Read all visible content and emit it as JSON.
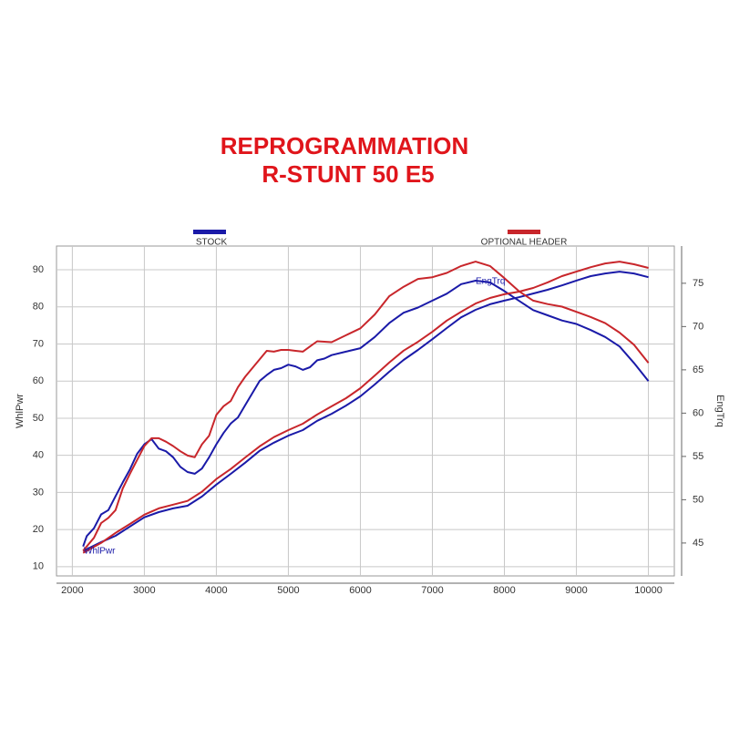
{
  "chart_data": {
    "type": "line",
    "title": [
      "REPROGRAMMATION",
      "R-STUNT 50 E5"
    ],
    "y_label": "WhlPwr",
    "y2_label": "EngTrq",
    "annotations": [
      "EngTrq",
      "WhlPwr"
    ],
    "xlim": [
      1780,
      10360
    ],
    "ylim": [
      7.5,
      96.4
    ],
    "y2lim": [
      41.2,
      79.3
    ],
    "xticks": [
      2000,
      3000,
      4000,
      5000,
      6000,
      7000,
      8000,
      9000,
      10000
    ],
    "yticks": [
      10,
      20,
      30,
      40,
      50,
      60,
      70,
      80,
      90
    ],
    "y2ticks": [
      45,
      50,
      55,
      60,
      65,
      70,
      75
    ],
    "grid": true,
    "series": [
      {
        "name": "STOCK",
        "color": "#1a1aa8",
        "lines": [
          {
            "x": [
              2150,
              2400,
              2600,
              2800,
              3000,
              3200,
              3400,
              3600,
              3800,
              4000,
              4200,
              4400,
              4600,
              4800,
              5000,
              5200,
              5400,
              5600,
              5800,
              6000,
              6200,
              6400,
              6600,
              6800,
              7000,
              7200,
              7400,
              7600,
              7800,
              8000,
              8200,
              8400,
              8600,
              8800,
              9000,
              9200,
              9400,
              9600,
              9800,
              10000
            ],
            "values": [
              14.2,
              16.6,
              18.3,
              20.8,
              23.3,
              24.7,
              25.7,
              26.4,
              28.9,
              32.1,
              35.0,
              38.0,
              41.2,
              43.4,
              45.3,
              46.8,
              49.3,
              51.2,
              53.4,
              55.9,
              59.1,
              62.5,
              65.7,
              68.4,
              71.3,
              74.3,
              77.2,
              79.2,
              80.7,
              81.7,
              82.6,
              83.6,
              84.6,
              85.8,
              87.1,
              88.3,
              89.0,
              89.5,
              89.0,
              88.0
            ]
          },
          {
            "axis": "y2",
            "x": [
              2150,
              2200,
              2300,
              2400,
              2500,
              2600,
              2700,
              2800,
              2900,
              3000,
              3100,
              3200,
              3300,
              3400,
              3500,
              3600,
              3700,
              3800,
              3900,
              4000,
              4100,
              4200,
              4300,
              4400,
              4500,
              4600,
              4700,
              4800,
              4900,
              5000,
              5100,
              5200,
              5300,
              5400,
              5500,
              5600,
              5800,
              6000,
              6200,
              6400,
              6600,
              6800,
              7000,
              7200,
              7400,
              7600,
              7800,
              8000,
              8200,
              8400,
              8600,
              8800,
              9000,
              9200,
              9400,
              9600,
              9800,
              10000
            ],
            "values": [
              44.6,
              45.8,
              46.7,
              48.3,
              48.8,
              50.4,
              52.0,
              53.5,
              55.3,
              56.4,
              57.0,
              55.9,
              55.6,
              54.9,
              53.8,
              53.2,
              53.0,
              53.6,
              54.9,
              56.4,
              57.7,
              58.8,
              59.5,
              60.9,
              62.3,
              63.7,
              64.4,
              65.0,
              65.2,
              65.6,
              65.4,
              65.0,
              65.3,
              66.1,
              66.3,
              66.7,
              67.1,
              67.5,
              68.8,
              70.4,
              71.6,
              72.2,
              73.0,
              73.8,
              74.9,
              75.3,
              75.1,
              74.1,
              73.0,
              71.9,
              71.3,
              70.7,
              70.3,
              69.6,
              68.8,
              67.7,
              65.8,
              63.7
            ]
          }
        ]
      },
      {
        "name": "OPTIONAL HEADER",
        "color": "#c8262b",
        "lines": [
          {
            "x": [
              2150,
              2400,
              2600,
              2800,
              3000,
              3200,
              3400,
              3600,
              3800,
              4000,
              4200,
              4400,
              4600,
              4800,
              5000,
              5200,
              5400,
              5600,
              5800,
              6000,
              6200,
              6400,
              6600,
              6800,
              7000,
              7200,
              7400,
              7600,
              7800,
              8000,
              8200,
              8400,
              8600,
              8800,
              9000,
              9200,
              9400,
              9600,
              9800,
              10000
            ],
            "values": [
              13.7,
              16.4,
              19.1,
              21.5,
              24.0,
              25.7,
              26.7,
              27.7,
              30.2,
              33.6,
              36.3,
              39.4,
              42.4,
              44.9,
              46.8,
              48.5,
              51.0,
              53.2,
              55.4,
              58.1,
              61.5,
              65.0,
              68.2,
              70.6,
              73.3,
              76.3,
              78.7,
              80.9,
              82.4,
              83.4,
              84.1,
              85.1,
              86.6,
              88.3,
              89.5,
              90.7,
              91.7,
              92.2,
              91.5,
              90.5
            ]
          },
          {
            "axis": "y2",
            "x": [
              2150,
              2300,
              2400,
              2500,
              2600,
              2700,
              2800,
              2900,
              3000,
              3100,
              3200,
              3300,
              3400,
              3500,
              3600,
              3700,
              3800,
              3900,
              4000,
              4100,
              4200,
              4300,
              4400,
              4500,
              4600,
              4700,
              4800,
              4900,
              5000,
              5100,
              5200,
              5300,
              5400,
              5600,
              5800,
              6000,
              6200,
              6400,
              6600,
              6800,
              7000,
              7200,
              7400,
              7600,
              7800,
              8000,
              8200,
              8400,
              8600,
              8800,
              9000,
              9200,
              9400,
              9600,
              9800,
              10000
            ],
            "values": [
              44.1,
              45.6,
              47.3,
              47.9,
              48.8,
              51.3,
              53.0,
              54.6,
              56.2,
              57.1,
              57.1,
              56.7,
              56.2,
              55.6,
              55.1,
              54.9,
              56.4,
              57.4,
              59.8,
              60.8,
              61.4,
              63.0,
              64.2,
              65.2,
              66.2,
              67.2,
              67.1,
              67.3,
              67.3,
              67.2,
              67.1,
              67.7,
              68.3,
              68.2,
              69.0,
              69.8,
              71.4,
              73.5,
              74.6,
              75.5,
              75.7,
              76.2,
              77.0,
              77.5,
              77.0,
              75.6,
              74.1,
              73.0,
              72.6,
              72.3,
              71.7,
              71.1,
              70.4,
              69.3,
              67.9,
              65.8
            ]
          }
        ]
      }
    ]
  }
}
